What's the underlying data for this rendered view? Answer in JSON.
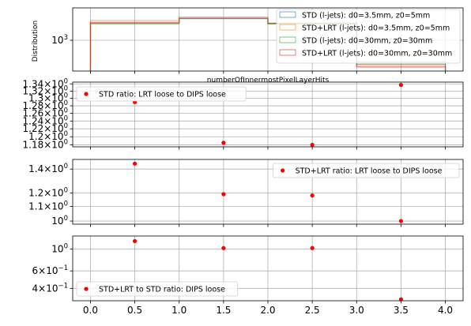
{
  "chart_data": [
    {
      "type": "step",
      "panel": "distribution",
      "ylabel": "Distribution",
      "xlabel": "numberOfInnermostPixelLayerHits",
      "yscale": "log",
      "ylim": [
        250,
        4300
      ],
      "yticks": [
        {
          "v": 1000,
          "label": "10",
          "exp": "3"
        }
      ],
      "bin_edges": [
        0,
        1,
        2,
        3,
        4
      ],
      "legend_position": "upper right",
      "series": [
        {
          "name": "STD (l-jets): d0=3.5mm, z0=5mm",
          "color": "#1f77b4",
          "values": [
            2150,
            2700,
            2150,
            380
          ]
        },
        {
          "name": "STD+LRT (l-jets): d0=3.5mm, z0=5mm",
          "color": "#ff7f0e",
          "values": [
            2450,
            2850,
            2100,
            320
          ]
        },
        {
          "name": "STD (l-jets): d0=30mm, z0=30mm",
          "color": "#2ca02c",
          "values": [
            2100,
            2650,
            2100,
            340
          ]
        },
        {
          "name": "STD+LRT (l-jets): d0=30mm, z0=30mm",
          "color": "#d62728",
          "values": [
            2250,
            2700,
            2150,
            300
          ]
        }
      ]
    },
    {
      "type": "scatter",
      "panel": "ratio1",
      "yscale": "log",
      "ylim": [
        1.175,
        1.345
      ],
      "yticks": [
        {
          "v": 1.18,
          "label": "1.18",
          "exp": "0"
        },
        {
          "v": 1.2,
          "label": "1.2",
          "exp": "0"
        },
        {
          "v": 1.22,
          "label": "1.22",
          "exp": "0"
        },
        {
          "v": 1.24,
          "label": "1.24",
          "exp": "0"
        },
        {
          "v": 1.26,
          "label": "1.26",
          "exp": "0"
        },
        {
          "v": 1.28,
          "label": "1.28",
          "exp": "0"
        },
        {
          "v": 1.3,
          "label": "1.3",
          "exp": "0"
        },
        {
          "v": 1.32,
          "label": "1.32",
          "exp": "0"
        },
        {
          "v": 1.34,
          "label": "1.34",
          "exp": "0"
        }
      ],
      "x": [
        0.5,
        1.5,
        2.5,
        3.5
      ],
      "y": [
        1.29,
        1.185,
        1.18,
        1.337
      ],
      "legend": "STD ratio: LRT loose to DIPS loose",
      "legend_position": "upper left",
      "color": "#ff0000"
    },
    {
      "type": "scatter",
      "panel": "ratio2",
      "yscale": "log",
      "ylim": [
        0.98,
        1.49
      ],
      "yticks": [
        {
          "v": 1.0,
          "label": "10",
          "exp": "0"
        },
        {
          "v": 1.1,
          "label": "1.1",
          "exp": "0"
        },
        {
          "v": 1.2,
          "label": "1.2",
          "exp": "0"
        },
        {
          "v": 1.4,
          "label": "1.4",
          "exp": "0"
        }
      ],
      "hline": 1.0,
      "x": [
        0.5,
        1.5,
        2.5,
        3.5
      ],
      "y": [
        1.45,
        1.19,
        1.18,
        1.0
      ],
      "legend": "STD+LRT ratio: LRT loose to DIPS loose",
      "legend_position": "upper right",
      "color": "#ff0000"
    },
    {
      "type": "scatter",
      "panel": "ratio3",
      "yscale": "log",
      "ylim": [
        0.3,
        1.35
      ],
      "yticks": [
        {
          "v": 0.4,
          "label": "4",
          "exp": "−1",
          "mult": true
        },
        {
          "v": 0.6,
          "label": "6",
          "exp": "−1",
          "mult": true
        },
        {
          "v": 1.0,
          "label": "10",
          "exp": "0"
        }
      ],
      "hline": 1.0,
      "x": [
        0.5,
        1.5,
        2.5,
        3.5
      ],
      "y": [
        1.2,
        1.02,
        1.02,
        0.31
      ],
      "legend": "STD+LRT to STD ratio: DIPS loose",
      "legend_position": "lower left",
      "color": "#ff0000"
    }
  ],
  "x_axis": {
    "xlim": [
      -0.2,
      4.2
    ],
    "ticks": [
      "0.0",
      "0.5",
      "1.0",
      "1.5",
      "2.0",
      "2.5",
      "3.0",
      "3.5",
      "4.0"
    ]
  }
}
